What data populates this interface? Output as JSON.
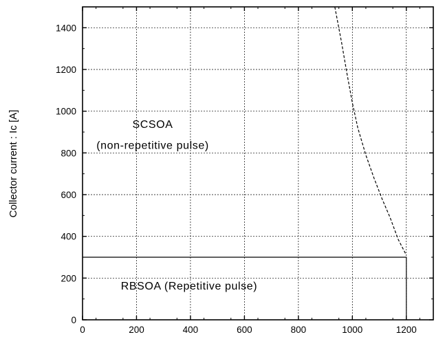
{
  "chart_data": {
    "type": "line",
    "title": "",
    "xlabel": "",
    "ylabel": "Collector current : Ic [A]",
    "xlim": [
      0,
      1300
    ],
    "ylim": [
      0,
      1500
    ],
    "x_ticks": [
      0,
      200,
      400,
      600,
      800,
      1000,
      1200
    ],
    "y_ticks": [
      0,
      200,
      400,
      600,
      800,
      1000,
      1200,
      1400
    ],
    "grid": true,
    "series": [
      {
        "style": "solid",
        "x": [
          0,
          1200,
          1200
        ],
        "y": [
          300,
          300,
          0
        ]
      },
      {
        "style": "dashed",
        "x": [
          935,
          960,
          980,
          1000,
          1020,
          1050,
          1080,
          1110,
          1140,
          1170,
          1200
        ],
        "y": [
          1500,
          1330,
          1180,
          1040,
          920,
          790,
          680,
          580,
          490,
          385,
          310
        ]
      }
    ],
    "annotations": [
      {
        "text": "SCSOA",
        "x": 260,
        "y": 920
      },
      {
        "text": "(non-repetitive pulse)",
        "x": 260,
        "y": 820
      },
      {
        "text": "RBSOA (Repetitive pulse)",
        "x": 395,
        "y": 145
      }
    ]
  }
}
